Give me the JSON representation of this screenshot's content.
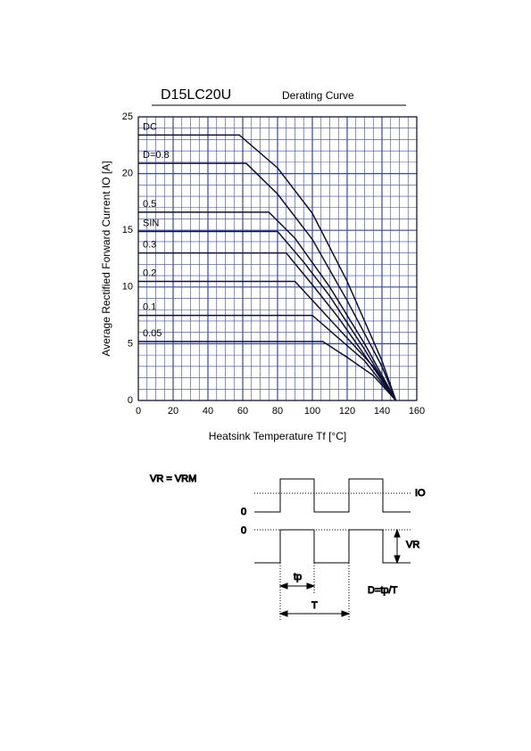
{
  "chart_data": {
    "type": "line",
    "title": "D15LC20U",
    "subtitle": "Derating Curve",
    "x_label": "Heatsink Temperature  Tf  [°C]",
    "y_label": "Average Rectified Forward Current  IO [A]",
    "xlim": [
      0,
      160
    ],
    "ylim": [
      0,
      25
    ],
    "xticks": [
      0,
      20,
      40,
      60,
      80,
      100,
      120,
      140,
      160
    ],
    "yticks": [
      0,
      5,
      10,
      15,
      20,
      25
    ],
    "grid": true,
    "grid_color": "#3344cc",
    "series": [
      {
        "name": "DC",
        "color": "#101030",
        "x": [
          0,
          58,
          80,
          100,
          120,
          140,
          148
        ],
        "values": [
          23.4,
          23.4,
          20.5,
          16.5,
          10.5,
          3.5,
          0
        ]
      },
      {
        "name": "D=0.8",
        "color": "#101030",
        "x": [
          0,
          62,
          80,
          100,
          120,
          140,
          148
        ],
        "values": [
          20.9,
          20.9,
          18.2,
          14.2,
          8.8,
          3,
          0
        ]
      },
      {
        "name": "0.5",
        "color": "#101030",
        "x": [
          0,
          75,
          90,
          110,
          130,
          148
        ],
        "values": [
          16.6,
          16.6,
          14.3,
          10,
          5,
          0
        ]
      },
      {
        "name": "SIN",
        "color": "#101030",
        "x": [
          0,
          80,
          95,
          110,
          130,
          148
        ],
        "values": [
          14.9,
          14.9,
          12.2,
          9.2,
          4.5,
          0
        ]
      },
      {
        "name": "0.3",
        "color": "#101030",
        "x": [
          0,
          85,
          100,
          115,
          130,
          148
        ],
        "values": [
          13,
          13,
          10.2,
          7.3,
          4,
          0
        ]
      },
      {
        "name": "0.2",
        "color": "#101030",
        "x": [
          0,
          90,
          105,
          120,
          135,
          148
        ],
        "values": [
          10.5,
          10.5,
          8,
          5.5,
          3,
          0
        ]
      },
      {
        "name": "0.1",
        "color": "#101030",
        "x": [
          0,
          100,
          115,
          130,
          148
        ],
        "values": [
          7.5,
          7.5,
          5.5,
          3.5,
          0
        ]
      },
      {
        "name": "0.05",
        "color": "#101030",
        "x": [
          0,
          106,
          120,
          135,
          148
        ],
        "values": [
          5.2,
          5.2,
          3.8,
          2.2,
          0
        ]
      }
    ]
  },
  "diagram": {
    "condition": "VR = VRM",
    "io_label": "IO",
    "zero_top": "0",
    "zero_bottom": "0",
    "vr_label": "VR",
    "tp_label": "tp",
    "t_label": "T",
    "duty_formula": "D=tp/T"
  }
}
